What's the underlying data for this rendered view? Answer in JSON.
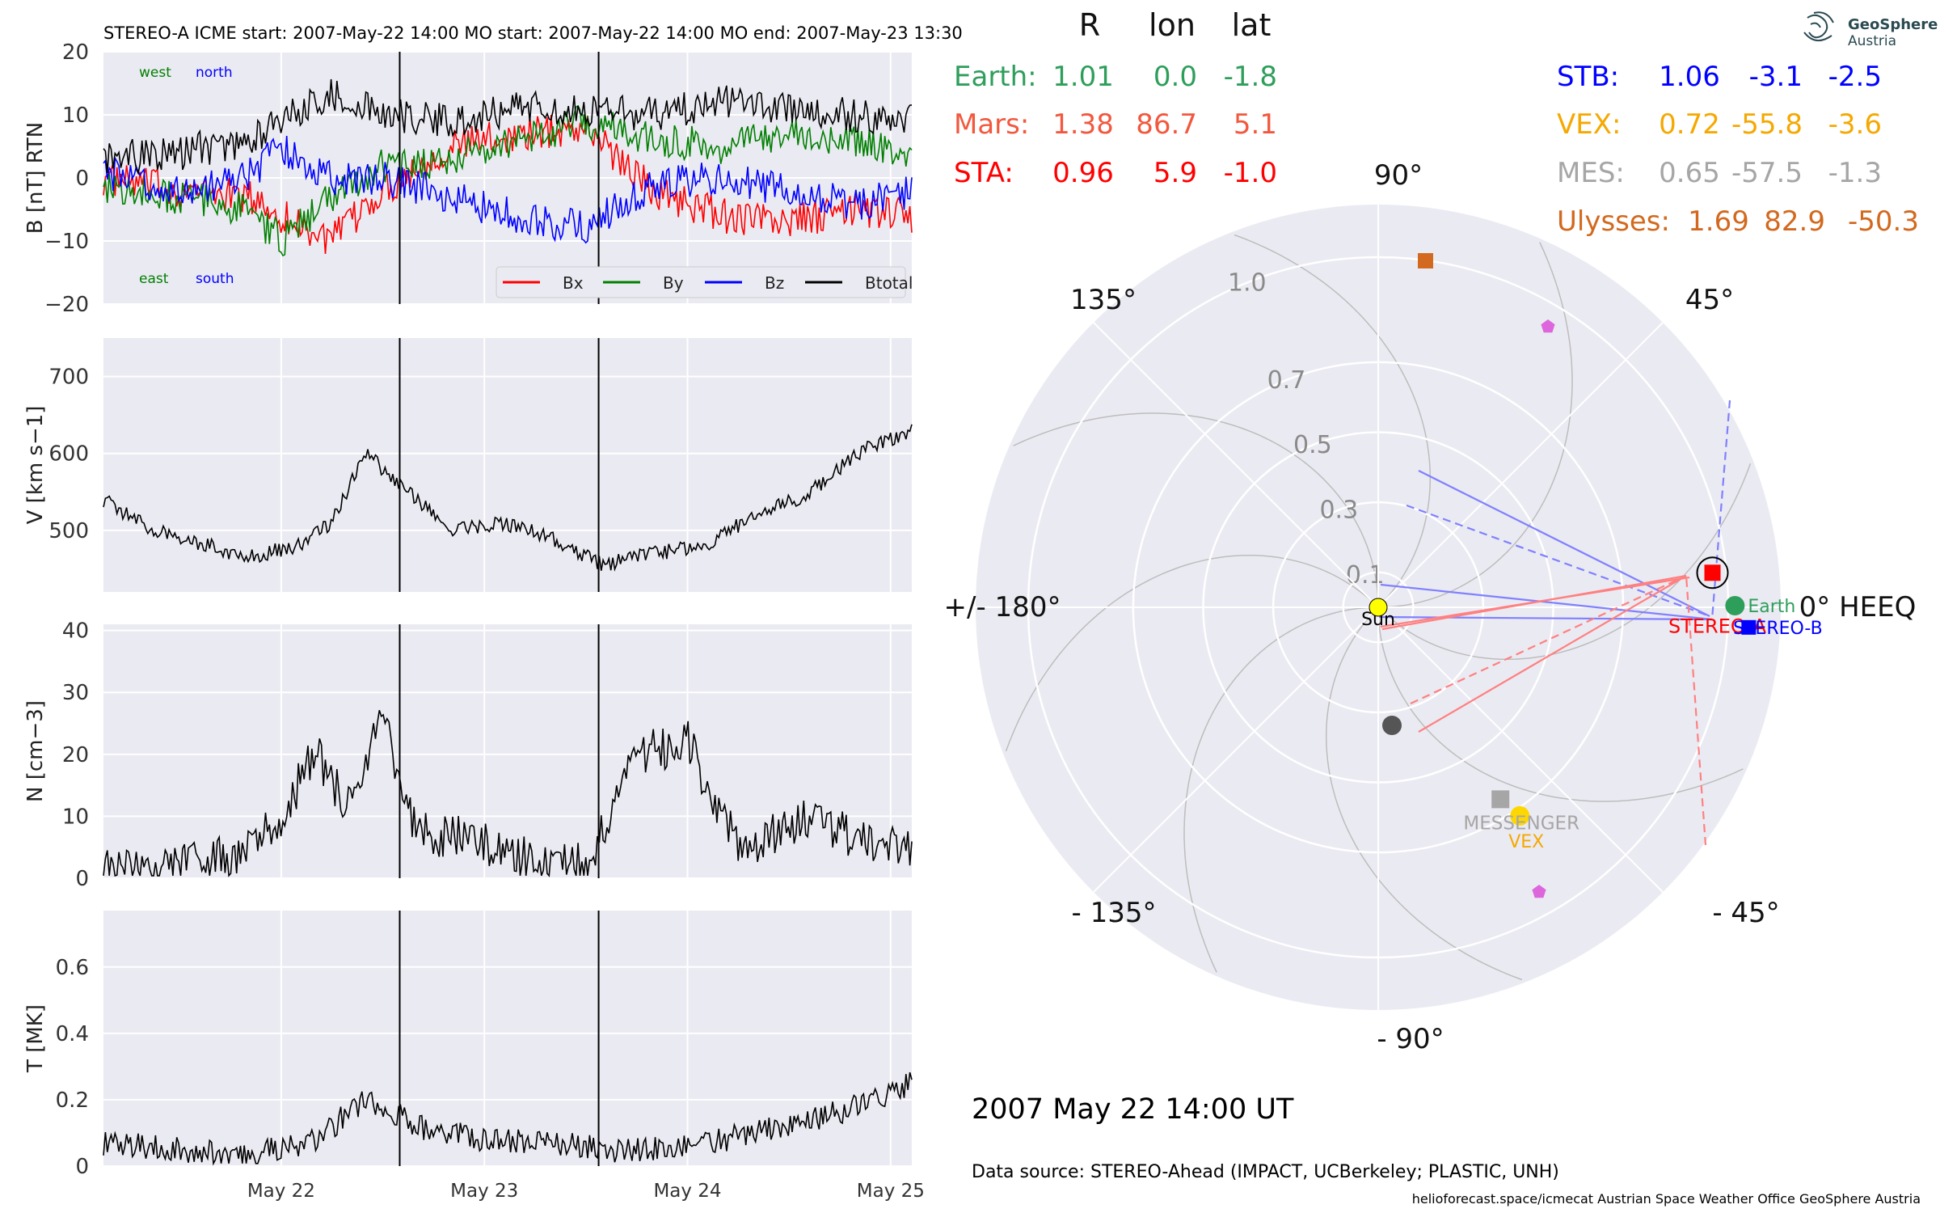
{
  "header": "STEREO-A    ICME start: 2007-May-22 14:00    MO start: 2007-May-22 14:00    MO end: 2007-May-23 13:30",
  "date_text": "2007 May 22  14:00 UT",
  "source_text": "Data source: STEREO-Ahead (IMPACT, UCBerkeley; PLASTIC, UNH)",
  "credits": "helioforecast.space/icmecat   Austrian Space Weather Office   GeoSphere Austria",
  "logo": {
    "line1": "GeoSphere",
    "line2": "Austria"
  },
  "colors": {
    "Bx": "#ff0000",
    "By": "#008000",
    "Bz": "#0000ff",
    "Btotal": "#000000",
    "panel_bg": "#eaeaf2"
  },
  "table": {
    "headers": [
      "R",
      "lon",
      "lat"
    ],
    "left": [
      {
        "name": "Earth:",
        "R": "1.01",
        "lon": "0.0",
        "lat": "-1.8",
        "color": "#2e9e5b"
      },
      {
        "name": "Mars:",
        "R": "1.38",
        "lon": "86.7",
        "lat": "5.1",
        "color": "#f2583e"
      },
      {
        "name": "STA:",
        "R": "0.96",
        "lon": "5.9",
        "lat": "-1.0",
        "color": "#ff0000"
      }
    ],
    "right": [
      {
        "name": "STB:",
        "R": "1.06",
        "lon": "-3.1",
        "lat": "-2.5",
        "color": "#0000ff"
      },
      {
        "name": "VEX:",
        "R": "0.72",
        "lon": "-55.8",
        "lat": "-3.6",
        "color": "#f5a800"
      },
      {
        "name": "MES:",
        "R": "0.65",
        "lon": "-57.5",
        "lat": "-1.3",
        "color": "#a6a6a6"
      },
      {
        "name": "Ulysses:",
        "R": "1.69",
        "lon": "82.9",
        "lat": "-50.3",
        "color": "#d2691e"
      }
    ]
  },
  "chart_data": [
    {
      "type": "line",
      "ylabel": "B [nT] RTN",
      "ylim": [
        -20,
        20
      ],
      "yticks": [
        20,
        10,
        0,
        -10,
        -20
      ],
      "xlim": [
        "2007-05-21 03:00",
        "2007-05-25 02:30"
      ],
      "vlines": [
        "2007-05-22 14:00",
        "2007-05-23 13:30"
      ],
      "annotations": [
        "west",
        "north",
        "east",
        "south"
      ],
      "legend_placement": "lower right",
      "series": [
        {
          "name": "Bx",
          "color": "#ff0000",
          "x": [
            "2007-05-21 03:00",
            "2007-05-21 12:00",
            "2007-05-21 20:00",
            "2007-05-22 00:00",
            "2007-05-22 06:00",
            "2007-05-22 12:00",
            "2007-05-22 20:00",
            "2007-05-23 04:00",
            "2007-05-23 12:00",
            "2007-05-23 20:00",
            "2007-05-24 04:00",
            "2007-05-24 12:00",
            "2007-05-24 20:00",
            "2007-05-25 02:30"
          ],
          "values": [
            0,
            -2,
            -3,
            -6,
            -10,
            -2,
            5,
            7,
            8,
            -2,
            -6,
            -7,
            -5,
            -6
          ]
        },
        {
          "name": "By",
          "color": "#008000",
          "x": [
            "2007-05-21 03:00",
            "2007-05-21 12:00",
            "2007-05-21 20:00",
            "2007-05-22 00:00",
            "2007-05-22 06:00",
            "2007-05-22 12:00",
            "2007-05-22 20:00",
            "2007-05-23 04:00",
            "2007-05-23 12:00",
            "2007-05-23 20:00",
            "2007-05-24 04:00",
            "2007-05-24 12:00",
            "2007-05-24 20:00",
            "2007-05-25 02:30"
          ],
          "values": [
            -2,
            -3,
            -5,
            -10,
            -3,
            2,
            3,
            6,
            9,
            6,
            5,
            7,
            6,
            4
          ]
        },
        {
          "name": "Bz",
          "color": "#0000ff",
          "x": [
            "2007-05-21 03:00",
            "2007-05-21 12:00",
            "2007-05-21 20:00",
            "2007-05-22 00:00",
            "2007-05-22 06:00",
            "2007-05-22 12:00",
            "2007-05-22 20:00",
            "2007-05-23 04:00",
            "2007-05-23 12:00",
            "2007-05-23 20:00",
            "2007-05-24 04:00",
            "2007-05-24 12:00",
            "2007-05-24 20:00",
            "2007-05-25 02:30"
          ],
          "values": [
            1,
            -2,
            0,
            5,
            0,
            0,
            -3,
            -6,
            -8,
            -1,
            0,
            -2,
            -4,
            -2
          ]
        },
        {
          "name": "Btotal",
          "color": "#000000",
          "x": [
            "2007-05-21 03:00",
            "2007-05-21 12:00",
            "2007-05-21 20:00",
            "2007-05-22 00:00",
            "2007-05-22 06:00",
            "2007-05-22 12:00",
            "2007-05-22 20:00",
            "2007-05-23 04:00",
            "2007-05-23 12:00",
            "2007-05-23 20:00",
            "2007-05-24 04:00",
            "2007-05-24 12:00",
            "2007-05-24 20:00",
            "2007-05-25 02:30"
          ],
          "values": [
            3,
            4,
            6,
            9,
            13,
            10,
            9,
            11,
            11,
            10,
            12,
            11,
            10,
            9
          ]
        }
      ]
    },
    {
      "type": "line",
      "ylabel": "V [km s−1]",
      "ylim": [
        420,
        750
      ],
      "yticks": [
        700,
        600,
        500
      ],
      "series": [
        {
          "name": "",
          "color": "#000000",
          "x": [
            "2007-05-21 03:00",
            "2007-05-21 08:00",
            "2007-05-21 14:00",
            "2007-05-21 20:00",
            "2007-05-22 02:00",
            "2007-05-22 06:00",
            "2007-05-22 10:00",
            "2007-05-22 14:00",
            "2007-05-22 20:00",
            "2007-05-23 02:00",
            "2007-05-23 08:00",
            "2007-05-23 14:00",
            "2007-05-23 20:00",
            "2007-05-24 02:00",
            "2007-05-24 08:00",
            "2007-05-24 14:00",
            "2007-05-24 20:00",
            "2007-05-25 02:30"
          ],
          "values": [
            540,
            505,
            485,
            465,
            480,
            510,
            600,
            560,
            500,
            510,
            490,
            455,
            470,
            480,
            520,
            545,
            600,
            630
          ]
        }
      ]
    },
    {
      "type": "line",
      "ylabel": "N [cm−3]",
      "ylim": [
        0,
        41
      ],
      "yticks": [
        40,
        30,
        20,
        10,
        0
      ],
      "series": [
        {
          "name": "",
          "color": "#000000",
          "x": [
            "2007-05-21 03:00",
            "2007-05-21 12:00",
            "2007-05-21 20:00",
            "2007-05-22 00:00",
            "2007-05-22 04:00",
            "2007-05-22 08:00",
            "2007-05-22 12:00",
            "2007-05-22 16:00",
            "2007-05-22 22:00",
            "2007-05-23 06:00",
            "2007-05-23 12:00",
            "2007-05-23 18:00",
            "2007-05-24 00:00",
            "2007-05-24 06:00",
            "2007-05-24 14:00",
            "2007-05-24 22:00",
            "2007-05-25 02:30"
          ],
          "values": [
            1,
            2,
            4,
            10,
            20,
            12,
            25,
            8,
            6,
            3,
            2,
            20,
            22,
            5,
            9,
            6,
            4
          ]
        }
      ]
    },
    {
      "type": "line",
      "ylabel": "T [MK]",
      "ylim": [
        0,
        0.77
      ],
      "yticks": [
        0.6,
        0.4,
        0.2,
        0.0
      ],
      "x_ticklabels": [
        "May 22",
        "May 23",
        "May 24",
        "May 25"
      ],
      "series": [
        {
          "name": "",
          "color": "#000000",
          "x": [
            "2007-05-21 03:00",
            "2007-05-21 12:00",
            "2007-05-21 20:00",
            "2007-05-22 04:00",
            "2007-05-22 10:00",
            "2007-05-22 16:00",
            "2007-05-23 00:00",
            "2007-05-23 08:00",
            "2007-05-23 14:00",
            "2007-05-23 20:00",
            "2007-05-24 04:00",
            "2007-05-24 12:00",
            "2007-05-24 20:00",
            "2007-05-25 02:30"
          ],
          "values": [
            0.07,
            0.05,
            0.03,
            0.08,
            0.2,
            0.12,
            0.08,
            0.07,
            0.05,
            0.05,
            0.08,
            0.12,
            0.18,
            0.25
          ]
        }
      ]
    },
    {
      "type": "scatter",
      "title": "polar",
      "rticks": [
        "0.1",
        "0.3",
        "0.5",
        "0.7",
        "1.0"
      ],
      "angle_labels": [
        "90°",
        "45°",
        "0° HEEQ",
        "- 45°",
        "- 90°",
        "- 135°",
        "+/- 180°",
        "135°"
      ],
      "objects": [
        {
          "name": "Sun",
          "lon": 0,
          "r": 0,
          "color": "#ffff00",
          "label": "Sun"
        },
        {
          "name": "Earth",
          "lon": 0.0,
          "r": 1.01,
          "color": "#2e9e5b",
          "label": "Earth"
        },
        {
          "name": "STEREO-A",
          "lon": 5.9,
          "r": 0.96,
          "color": "#ff0000",
          "label": "STEREO-A"
        },
        {
          "name": "STEREO-B",
          "lon": -3.1,
          "r": 1.06,
          "color": "#0000ff",
          "label": "STEREO-B"
        },
        {
          "name": "VEX",
          "lon": -55.8,
          "r": 0.72,
          "color": "#ffd700",
          "label": "VEX"
        },
        {
          "name": "MESSENGER",
          "lon": -57.5,
          "r": 0.65,
          "color": "#a6a6a6",
          "label": "MESSENGER"
        },
        {
          "name": "Ulysses",
          "lon": 82.9,
          "r": 1.0,
          "color": "#d2691e",
          "label": ""
        },
        {
          "name": "planet",
          "lon": -85,
          "r": 0.38,
          "color": "#555555",
          "label": ""
        }
      ]
    }
  ]
}
